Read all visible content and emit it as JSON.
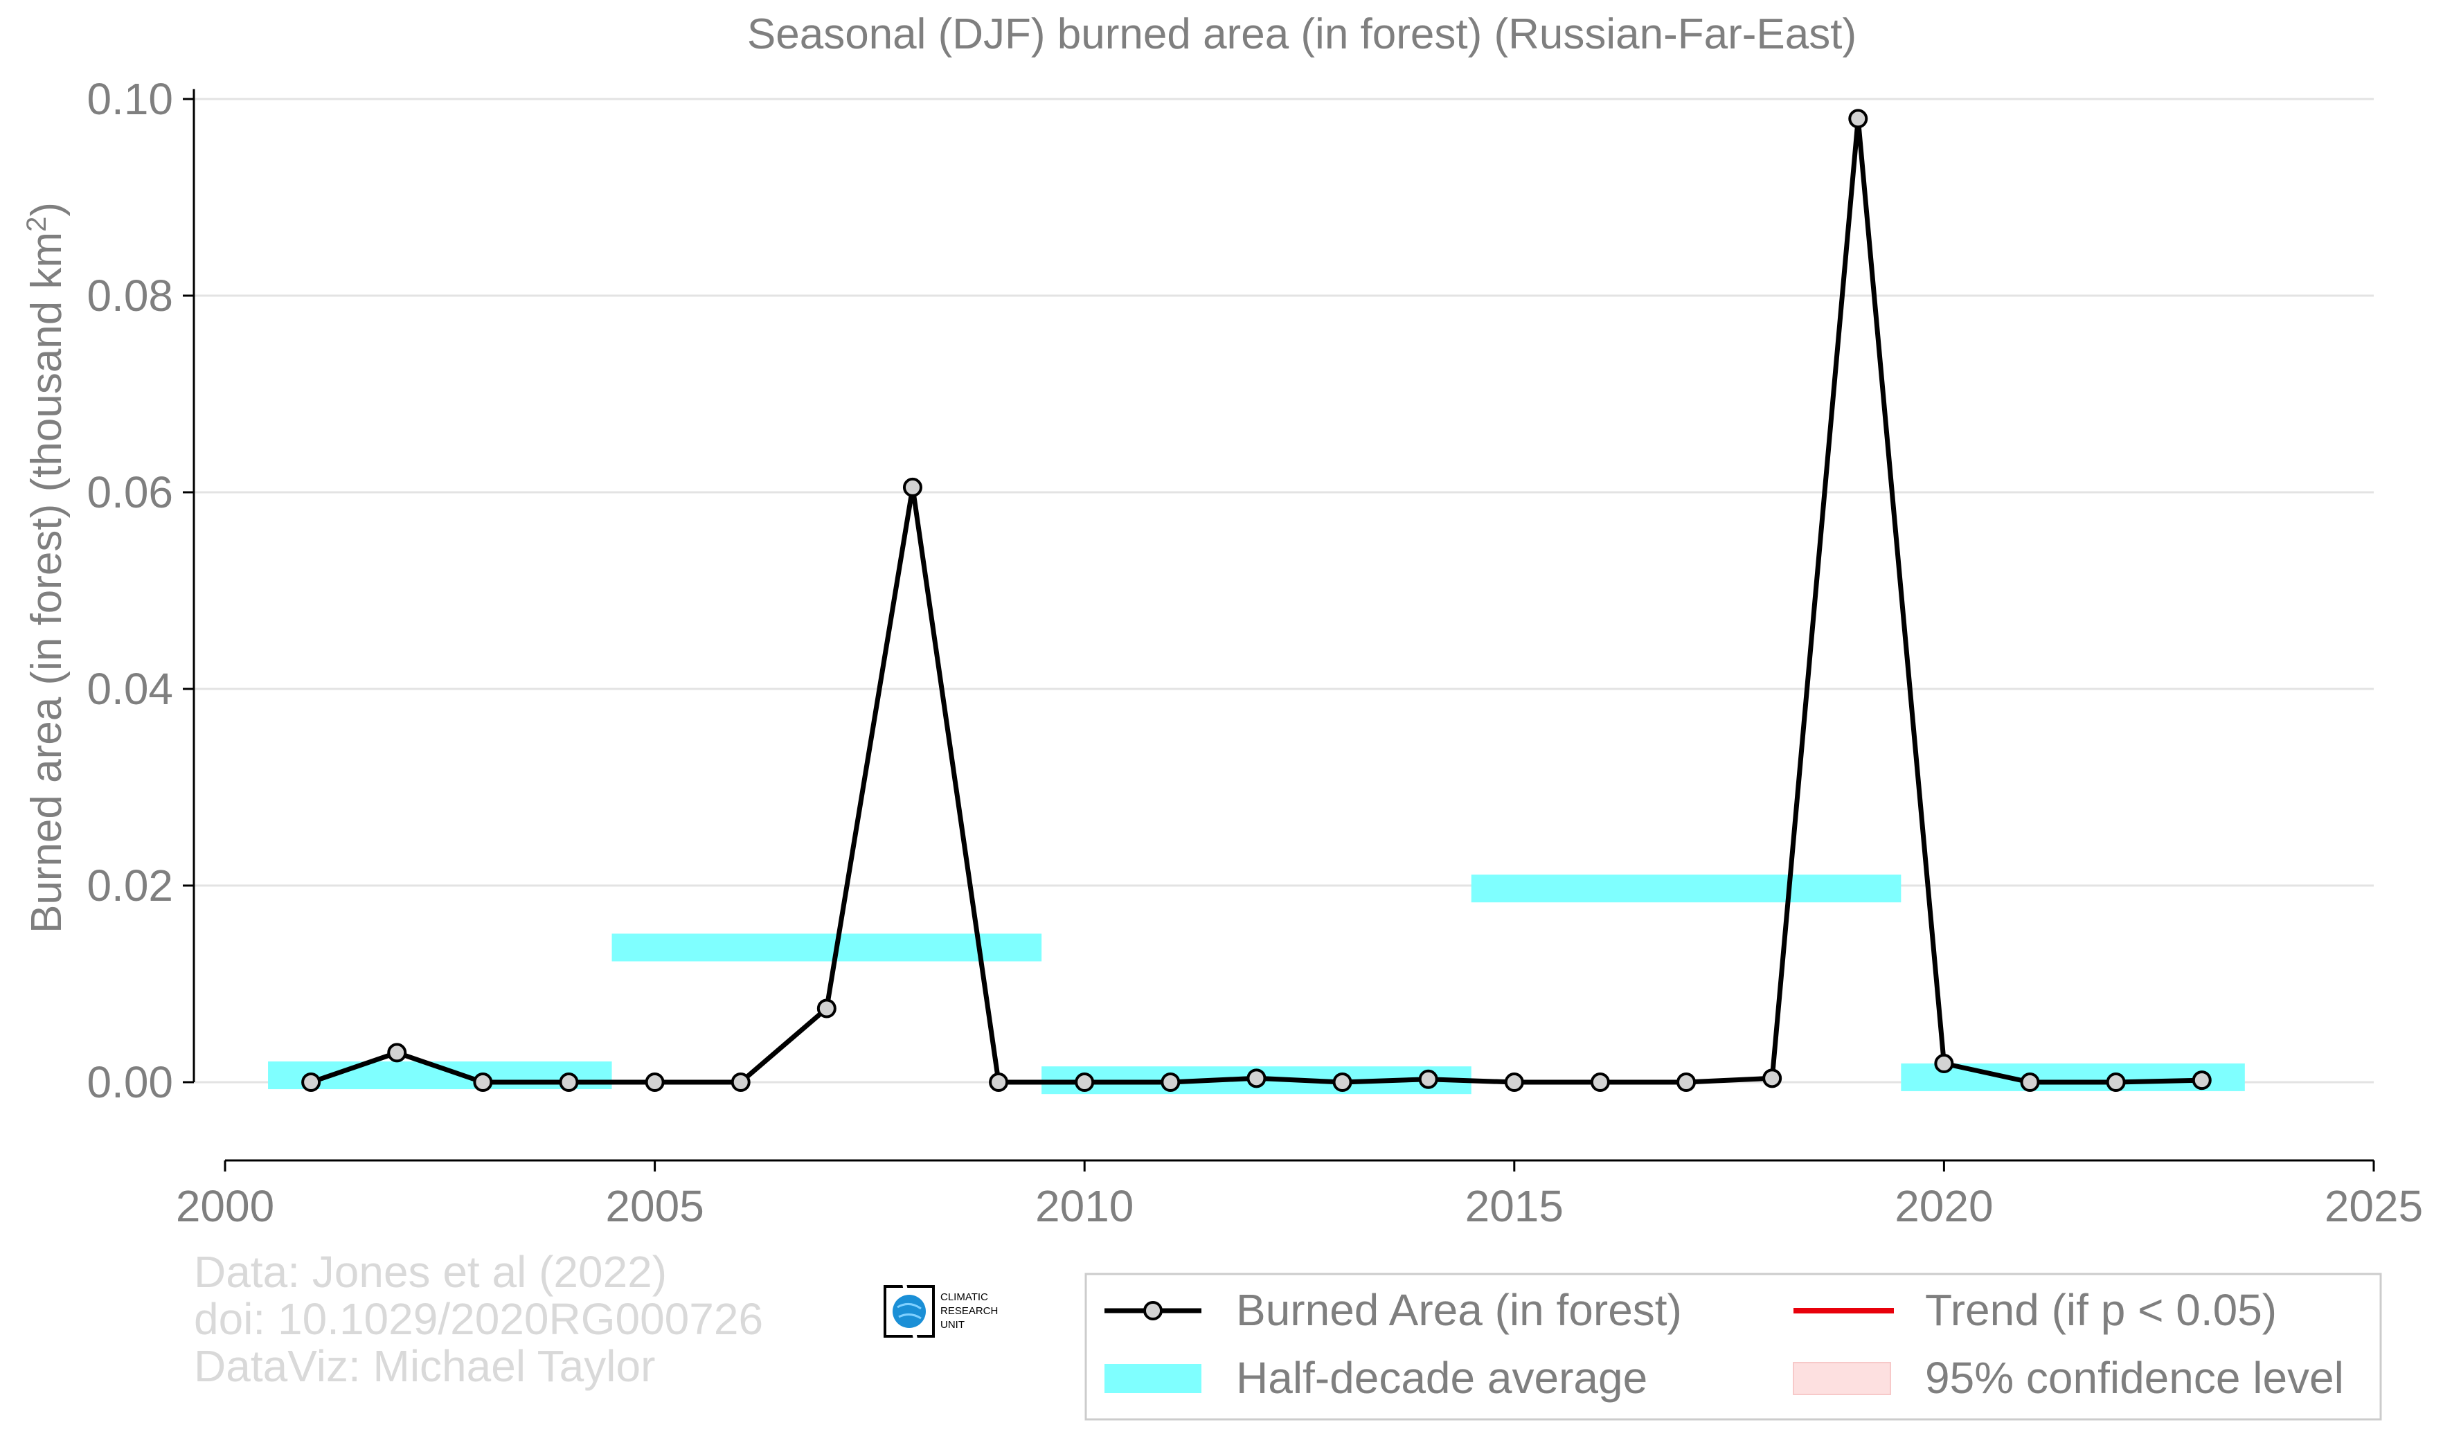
{
  "chart_data": {
    "type": "line",
    "title": "Seasonal (DJF) burned area (in forest) (Russian-Far-East)",
    "xlabel": "",
    "ylabel_main": "Burned area (in forest) (thousand km",
    "ylabel_sup": "2",
    "ylabel_end": ")",
    "xlim": [
      2000,
      2025
    ],
    "ylim": [
      -0.008,
      0.101
    ],
    "xticks": [
      2000,
      2005,
      2010,
      2015,
      2020,
      2025
    ],
    "yticks": [
      0.0,
      0.02,
      0.04,
      0.06,
      0.08,
      0.1
    ],
    "ytick_labels": [
      "0.00",
      "0.02",
      "0.04",
      "0.06",
      "0.08",
      "0.10"
    ],
    "grid": "horizontal",
    "series": [
      {
        "name": "Burned Area (in forest)",
        "color": "#000000",
        "marker_fill": "#d3d3d3",
        "x": [
          2001,
          2002,
          2003,
          2004,
          2005,
          2006,
          2007,
          2008,
          2009,
          2010,
          2011,
          2012,
          2013,
          2014,
          2015,
          2016,
          2017,
          2018,
          2019,
          2020,
          2021,
          2022,
          2023
        ],
        "y": [
          0.0,
          0.003,
          0.0,
          0.0,
          0.0,
          0.0,
          0.0075,
          0.0605,
          0.0,
          0.0,
          0.0,
          0.0004,
          0.0,
          0.0003,
          0.0,
          0.0,
          0.0,
          0.0004,
          0.098,
          0.0019,
          0.0,
          0.0,
          0.0002
        ]
      }
    ],
    "half_decade_average": {
      "name": "Half-decade average",
      "color": "#7fffff",
      "segments": [
        {
          "x_start": 2000.5,
          "x_end": 2004.5,
          "y": 0.0007
        },
        {
          "x_start": 2004.5,
          "x_end": 2009.5,
          "y": 0.0137
        },
        {
          "x_start": 2009.5,
          "x_end": 2014.5,
          "y": 0.0002
        },
        {
          "x_start": 2014.5,
          "x_end": 2019.5,
          "y": 0.0197
        },
        {
          "x_start": 2019.5,
          "x_end": 2023.5,
          "y": 0.0005
        }
      ]
    },
    "legend": {
      "placement": "bottom-right",
      "entries": [
        {
          "label": "Burned Area (in forest)",
          "kind": "line-marker",
          "color": "#000000"
        },
        {
          "label": "Trend (if p < 0.05)",
          "kind": "line",
          "color": "#e8000b"
        },
        {
          "label": "Half-decade average",
          "kind": "band",
          "color": "#7fffff"
        },
        {
          "label": "95% confidence level",
          "kind": "band",
          "color": "#fde0e0"
        }
      ]
    }
  },
  "credits": {
    "line1": "Data: Jones et al (2022)",
    "line2": "doi: 10.1029/2020RG000726",
    "line3": "DataViz: Michael Taylor"
  },
  "logo": {
    "text1": "CLIMATIC",
    "text2": "RESEARCH",
    "text3": "UNIT",
    "color": "#1a8fd6"
  }
}
